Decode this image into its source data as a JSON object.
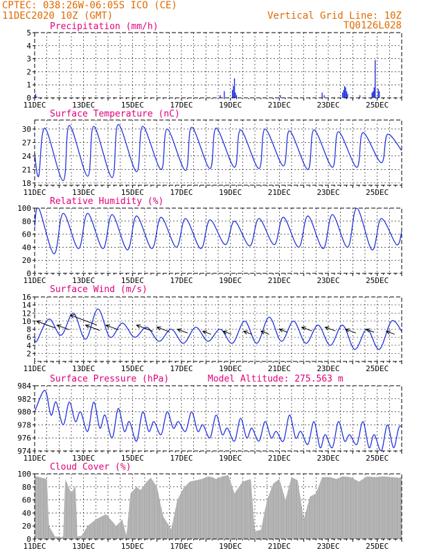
{
  "header": {
    "station_line": "CPTEC:  038:26W-06:05S  ICO (CE)",
    "datetime_line": "11DEC2020 10Z (GMT)",
    "grid_line_label": "Vertical Grid Line: 10Z",
    "code": "TQ0126L028"
  },
  "colors": {
    "header": "#e06a00",
    "panel_title": "#e0007a",
    "series": "#2233dd",
    "cloud": "#a8a8a8",
    "wind_arrow": "#000000"
  },
  "x_ticks": [
    "11DEC",
    "13DEC",
    "15DEC",
    "17DEC",
    "19DEC",
    "21DEC",
    "23DEC",
    "25DEC"
  ],
  "chart_data": [
    {
      "id": "precip",
      "type": "bar",
      "title": "Precipitation (mm/h)",
      "ylim": [
        0,
        5
      ],
      "yticks": [
        0,
        1,
        2,
        3,
        4,
        5
      ],
      "xlim": [
        0,
        360
      ],
      "x": [
        1,
        2,
        182,
        186,
        194,
        195,
        196,
        197,
        198,
        241,
        282,
        284,
        302,
        303,
        304,
        305,
        306,
        307,
        319,
        331,
        332,
        333,
        334,
        337,
        338
      ],
      "values": [
        0.3,
        0.1,
        0.2,
        0.5,
        0.6,
        0.9,
        1.5,
        0.4,
        0.2,
        0.2,
        0.4,
        0.2,
        0.4,
        0.6,
        0.9,
        0.8,
        0.5,
        0.3,
        0.2,
        0.4,
        0.5,
        0.8,
        2.9,
        0.7,
        0.5
      ]
    },
    {
      "id": "temp",
      "type": "line",
      "title": "Surface Temperature (nC)",
      "ylim": [
        17.5,
        32
      ],
      "yticks": [
        18,
        21,
        24,
        27,
        30
      ],
      "xlim": [
        0,
        360
      ],
      "period": 24,
      "max_x": [
        10,
        34,
        58,
        82,
        106,
        130,
        154,
        178,
        202,
        226,
        250,
        274,
        298,
        322,
        346
      ],
      "max_y": [
        30.2,
        30.8,
        30.6,
        31.0,
        30.6,
        30.0,
        30.4,
        30.2,
        29.8,
        30.0,
        29.6,
        29.8,
        29.4,
        29.2,
        28.8
      ],
      "min_x": [
        0,
        4,
        28,
        52,
        76,
        100,
        124,
        148,
        172,
        196,
        220,
        244,
        268,
        292,
        316,
        340
      ],
      "min_y": [
        24.5,
        19.5,
        18.5,
        19.5,
        19.2,
        20.5,
        21.0,
        20.8,
        21.2,
        21.5,
        21.2,
        21.8,
        21.0,
        21.5,
        21.5,
        22.5
      ],
      "end_y": 25.2
    },
    {
      "id": "rh",
      "type": "line",
      "title": "Relative Humidity (%)",
      "ylim": [
        0,
        100
      ],
      "yticks": [
        0,
        20,
        40,
        60,
        80,
        100
      ],
      "xlim": [
        0,
        360
      ],
      "period": 24,
      "max_x": [
        4,
        28,
        52,
        76,
        100,
        124,
        148,
        172,
        196,
        220,
        244,
        268,
        292,
        316,
        340
      ],
      "max_y": [
        100,
        92,
        92,
        90,
        88,
        86,
        84,
        82,
        80,
        84,
        86,
        88,
        90,
        100,
        84
      ],
      "min_x": [
        0,
        19,
        43,
        67,
        91,
        115,
        139,
        163,
        187,
        211,
        235,
        259,
        283,
        307,
        331,
        355
      ],
      "min_y": [
        72,
        30,
        38,
        38,
        36,
        38,
        40,
        38,
        44,
        42,
        44,
        40,
        38,
        40,
        36,
        44
      ],
      "end_y": 64
    },
    {
      "id": "wind",
      "type": "line",
      "title": "Surface Wind (m/s)",
      "ylim": [
        0,
        16
      ],
      "yticks": [
        2,
        4,
        6,
        8,
        10,
        12,
        14,
        16
      ],
      "xlim": [
        0,
        360
      ],
      "period": 24,
      "max_x": [
        14,
        38,
        62,
        86,
        110,
        134,
        158,
        182,
        206,
        230,
        254,
        278,
        302,
        326,
        350
      ],
      "max_y": [
        10.5,
        12.0,
        13.0,
        9.5,
        8.5,
        8.0,
        8.5,
        8.0,
        10.0,
        11.0,
        10.0,
        9.0,
        9.0,
        8.0,
        10.0
      ],
      "min_x": [
        0,
        2,
        26,
        50,
        74,
        98,
        122,
        146,
        170,
        194,
        218,
        242,
        266,
        290,
        314,
        338
      ],
      "min_y": [
        6.0,
        5.0,
        6.5,
        5.5,
        6.0,
        6.0,
        5.0,
        4.5,
        5.0,
        4.5,
        4.5,
        5.0,
        4.5,
        4.0,
        3.0,
        3.0
      ],
      "end_y": 7.5,
      "arrows": [
        [
          2,
          10.0,
          18
        ],
        [
          22,
          9.0,
          12
        ],
        [
          35,
          11.5,
          26
        ],
        [
          50,
          9.0,
          14
        ],
        [
          70,
          9.0,
          12
        ],
        [
          100,
          9.0,
          16
        ],
        [
          120,
          8.5,
          12
        ],
        [
          140,
          8.0,
          10
        ],
        [
          165,
          7.5,
          8
        ],
        [
          185,
          7.5,
          8
        ],
        [
          205,
          7.5,
          8
        ],
        [
          222,
          7.5,
          8
        ],
        [
          240,
          8.0,
          8
        ],
        [
          262,
          8.5,
          10
        ],
        [
          285,
          8.5,
          10
        ],
        [
          305,
          8.0,
          10
        ],
        [
          325,
          8.0,
          8
        ],
        [
          345,
          7.5,
          8
        ]
      ]
    },
    {
      "id": "pres",
      "type": "line",
      "title": "Surface Pressure (hPa)",
      "extra_label": "Model Altitude: 275.563 m",
      "ylim": [
        974,
        984
      ],
      "yticks": [
        974,
        976,
        978,
        980,
        982,
        984
      ],
      "xlim": [
        0,
        360
      ],
      "period": 12,
      "max_x": [
        10,
        21,
        34,
        45,
        58,
        69,
        82,
        93,
        106,
        117,
        130,
        141,
        154,
        165,
        178,
        189,
        202,
        213,
        226,
        237,
        250,
        261,
        274,
        285,
        298,
        309,
        322,
        333,
        346,
        357
      ],
      "max_y": [
        983.3,
        981.5,
        981.5,
        980.0,
        981.5,
        979.5,
        980.5,
        978.5,
        980.0,
        978.5,
        980.0,
        978.5,
        980.0,
        978.0,
        979.5,
        977.5,
        979.0,
        977.5,
        978.5,
        977.0,
        979.5,
        977.0,
        978.5,
        976.5,
        978.5,
        976.5,
        978.5,
        976.5,
        978.0,
        977.5
      ],
      "min_x": [
        0,
        16,
        28,
        40,
        52,
        64,
        76,
        88,
        100,
        112,
        124,
        136,
        148,
        160,
        172,
        184,
        196,
        208,
        220,
        232,
        244,
        256,
        268,
        280,
        292,
        304,
        316,
        328,
        340,
        352
      ],
      "min_y": [
        980.0,
        979.5,
        978.0,
        978.5,
        977.0,
        977.5,
        976.0,
        977.0,
        975.5,
        977.0,
        976.5,
        977.5,
        977.0,
        977.0,
        976.0,
        976.5,
        975.5,
        976.0,
        975.5,
        976.0,
        975.5,
        976.0,
        975.0,
        974.5,
        974.5,
        975.5,
        975.0,
        974.5,
        974.0,
        974.5
      ],
      "end_y": 977.8
    },
    {
      "id": "cloud",
      "type": "area",
      "title": "Cloud Cover (%)",
      "ylim": [
        0,
        100
      ],
      "yticks": [
        0,
        20,
        40,
        60,
        80,
        100
      ],
      "xlim": [
        0,
        360
      ],
      "x": [
        0,
        2,
        12,
        14,
        20,
        26,
        28,
        30,
        36,
        40,
        42,
        46,
        52,
        60,
        70,
        80,
        86,
        90,
        94,
        100,
        104,
        110,
        114,
        120,
        126,
        130,
        134,
        140,
        146,
        152,
        158,
        164,
        170,
        174,
        178,
        184,
        190,
        196,
        204,
        212,
        216,
        222,
        228,
        234,
        240,
        246,
        252,
        258,
        264,
        270,
        276,
        282,
        290,
        296,
        302,
        310,
        318,
        326,
        334,
        342,
        350,
        358,
        360
      ],
      "y": [
        96,
        96,
        92,
        20,
        4,
        3,
        4,
        92,
        70,
        82,
        4,
        5,
        20,
        30,
        38,
        20,
        30,
        5,
        70,
        80,
        75,
        88,
        94,
        80,
        35,
        25,
        15,
        60,
        78,
        88,
        90,
        92,
        96,
        95,
        92,
        96,
        98,
        70,
        88,
        92,
        12,
        14,
        60,
        85,
        92,
        60,
        95,
        90,
        30,
        65,
        70,
        95,
        95,
        92,
        96,
        95,
        88,
        96,
        95,
        96,
        95,
        94,
        95
      ]
    }
  ]
}
